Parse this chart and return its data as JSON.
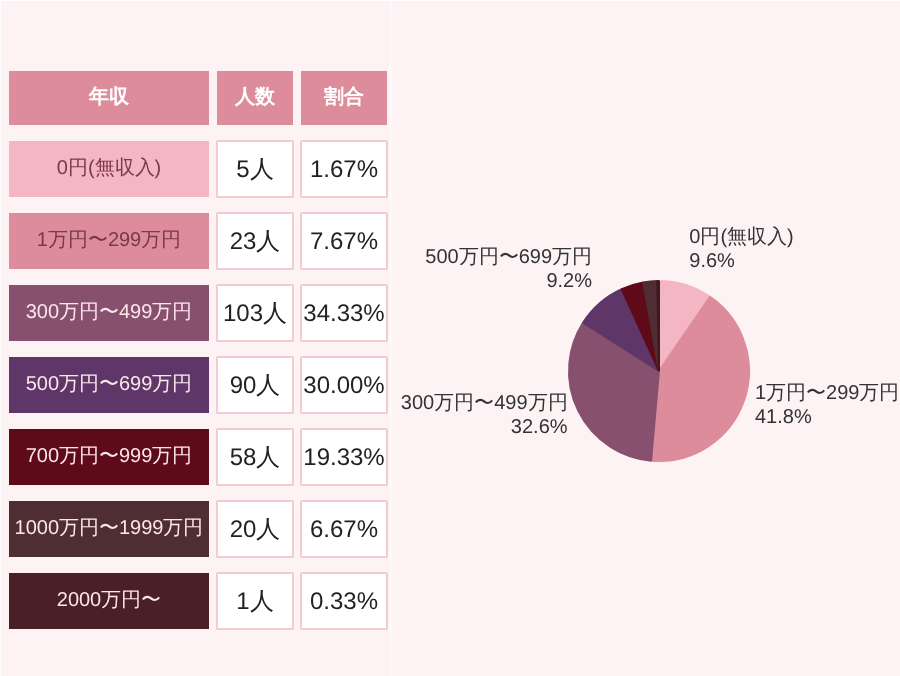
{
  "chart_data": [
    {
      "type": "other",
      "annotations": [
        "年収",
        "人数",
        "割合",
        "0円(無収入)",
        "5人",
        "1.67%",
        "1万円〜299万円",
        "23人",
        "7.67%",
        "300万円〜499万円",
        "103人",
        "34.33%",
        "500万円〜699万円",
        "90人",
        "30.00%",
        "700万円〜999万円",
        "58人",
        "19.33%",
        "1000万円〜1999万円",
        "20人",
        "6.67%",
        "2000万円〜",
        "1人",
        "0.33%"
      ]
    },
    {
      "type": "pie",
      "categories": [
        "0円(無収入)",
        "1万円〜299万円",
        "300万円〜499万円",
        "500万円〜699万円",
        null,
        null,
        null
      ],
      "values": [
        9.6,
        41.8,
        32.6,
        9.2,
        4.0,
        2.5,
        0.3
      ],
      "colors": [
        "#f4b6c2",
        "#dc8c9a",
        "#87506f",
        "#5e3768",
        "#5e0a18",
        "#4e2d33",
        "#3e1a20"
      ],
      "value_labels": [
        "9.6%",
        "41.8%",
        "32.6%",
        "9.2%",
        null,
        null,
        null
      ]
    }
  ]
}
